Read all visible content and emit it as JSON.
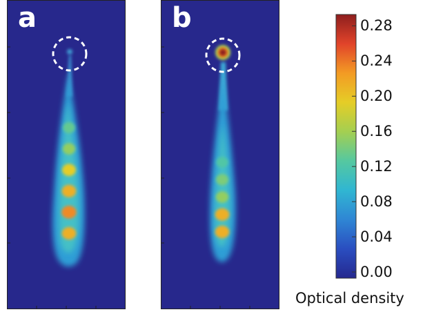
{
  "panels": [
    {
      "letter": "a",
      "circled_spot_level": 0.05,
      "cloud_peaks": [
        0.14,
        0.16,
        0.2,
        0.22,
        0.24,
        0.22
      ]
    },
    {
      "letter": "b",
      "circled_spot_level": 0.3,
      "cloud_peaks": [
        0.13,
        0.15,
        0.16,
        0.22,
        0.22
      ]
    }
  ],
  "colorbar": {
    "title": "Optical density",
    "ticks": [
      "0.28",
      "0.24",
      "0.20",
      "0.16",
      "0.12",
      "0.08",
      "0.04",
      "0.00"
    ],
    "range": [
      0,
      0.3
    ],
    "colors": [
      "#25288f",
      "#2a4ec0",
      "#2f86d4",
      "#30b6d2",
      "#55c8a0",
      "#a4cf51",
      "#e5cd27",
      "#f39b24",
      "#e1442a",
      "#8e1e1e"
    ]
  }
}
